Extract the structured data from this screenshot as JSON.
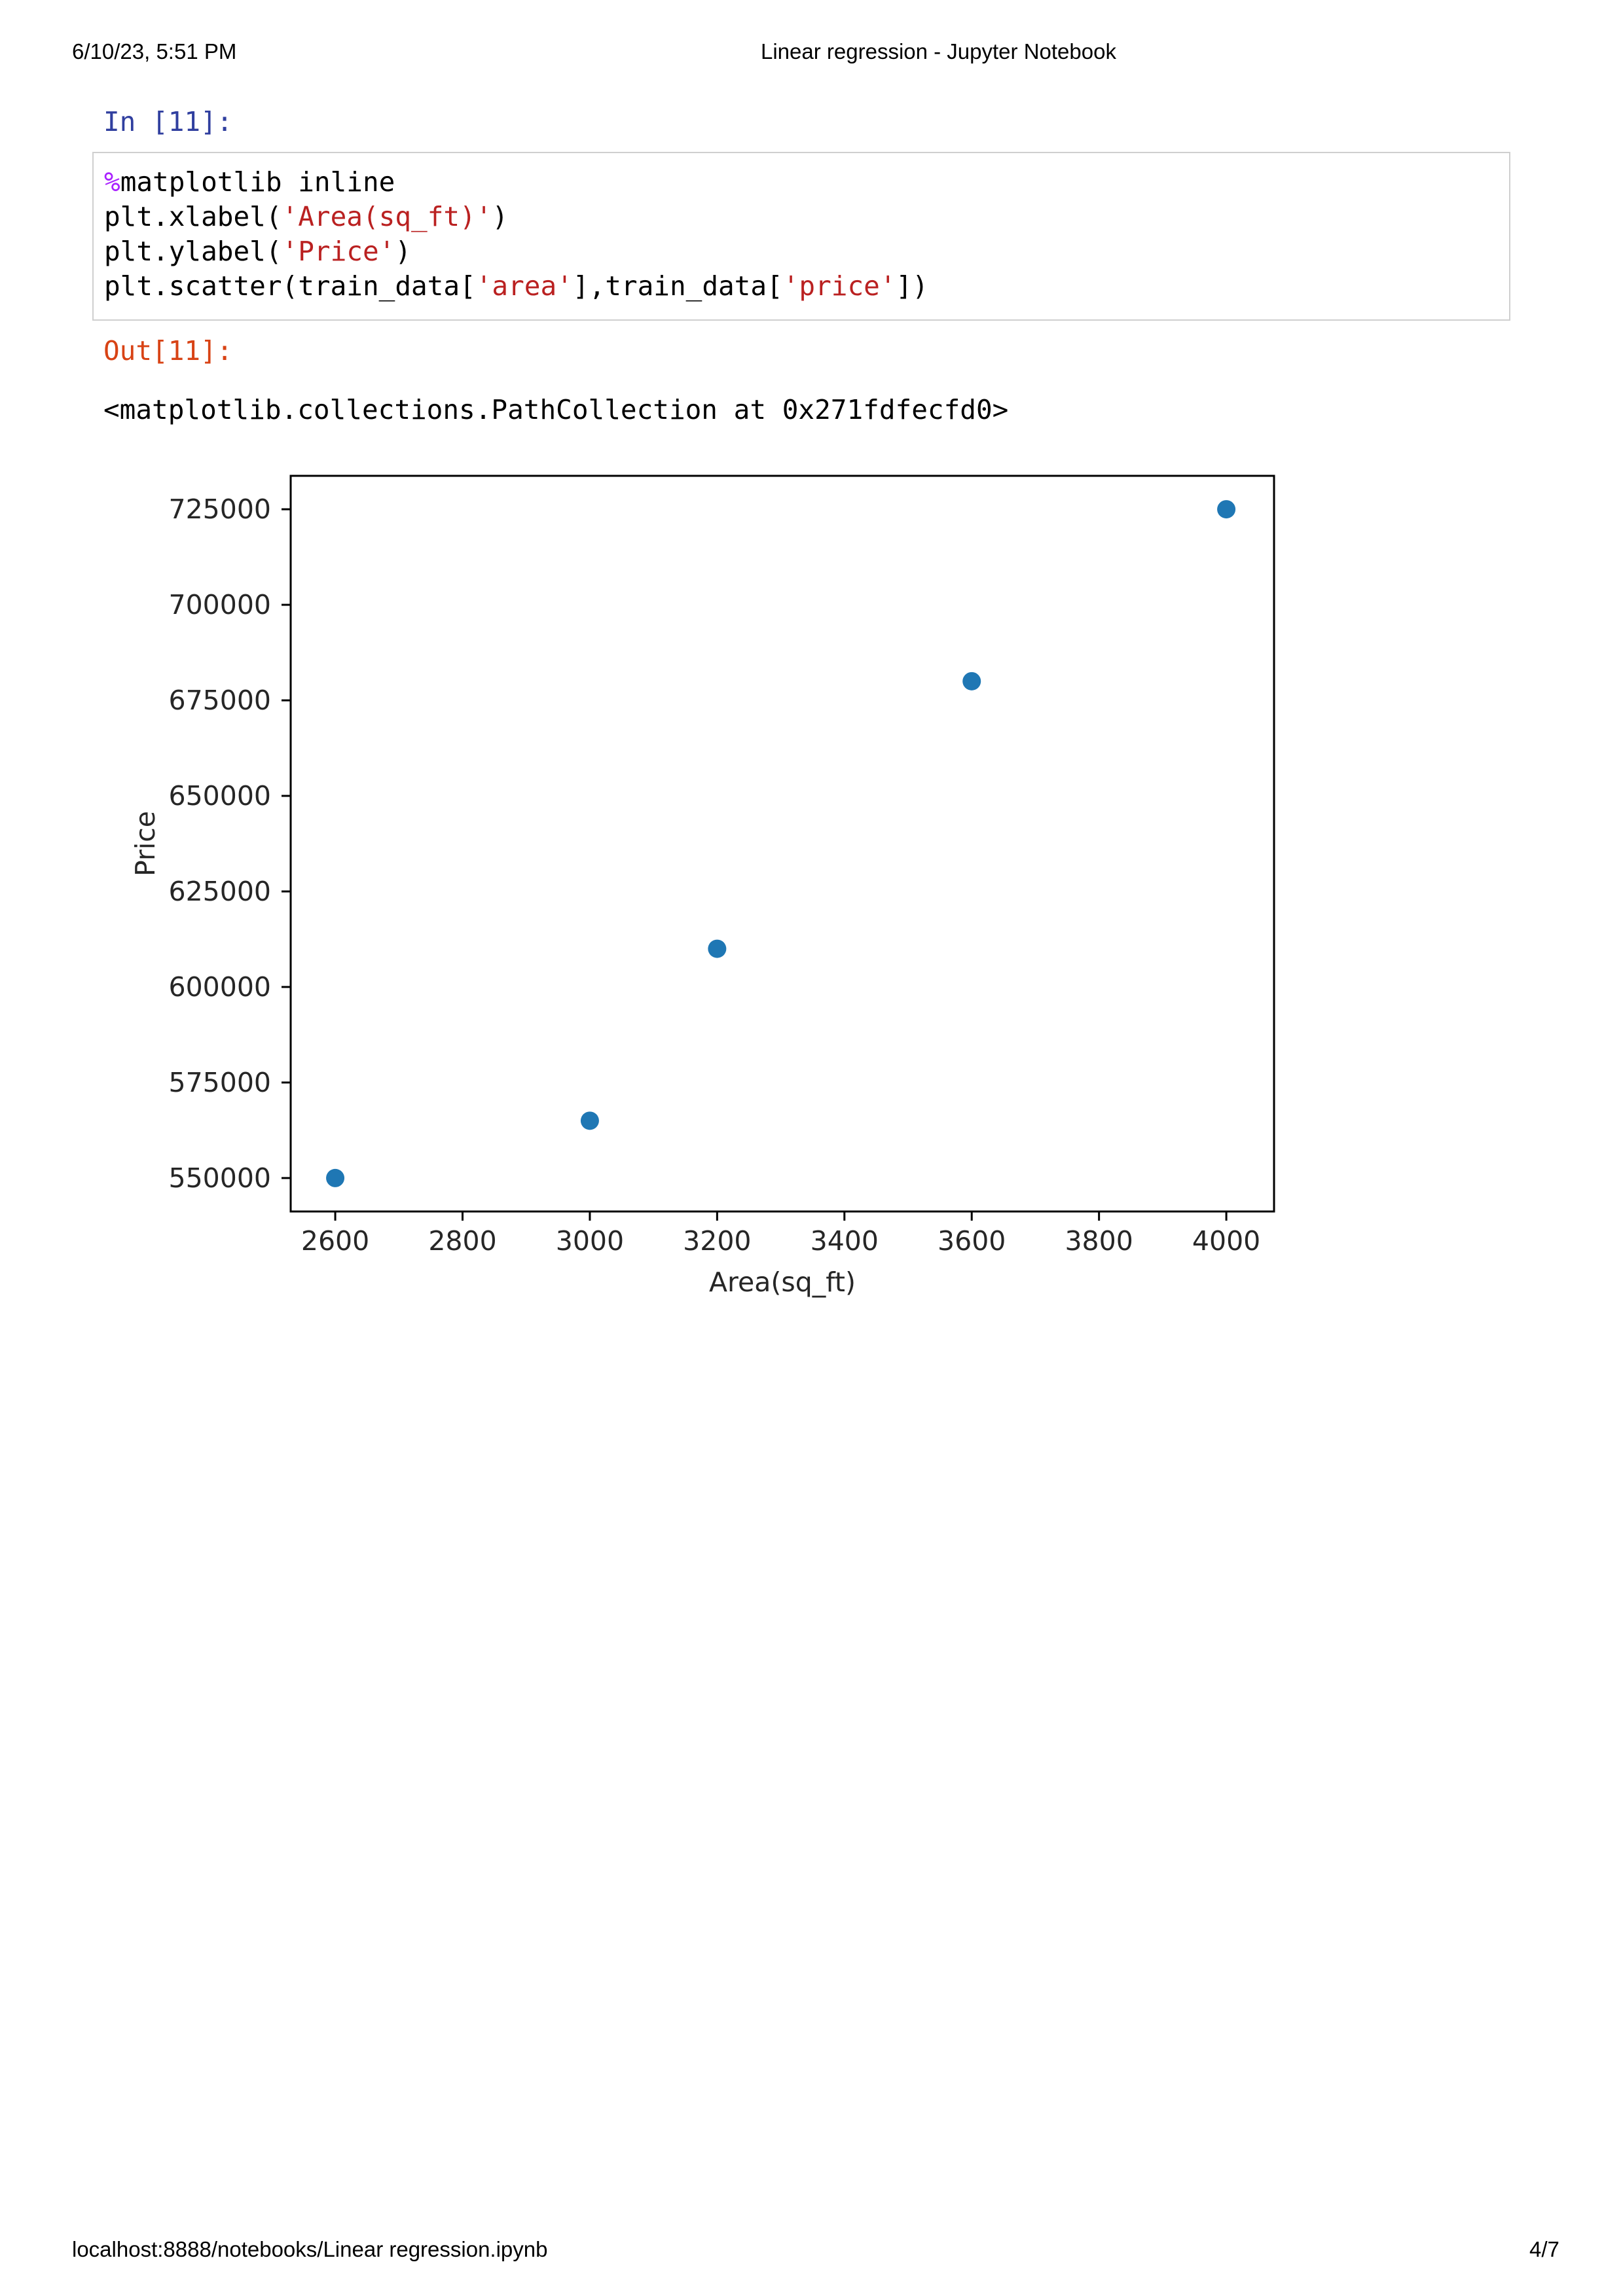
{
  "page_header": {
    "datetime": "6/10/23, 5:51 PM",
    "title": "Linear regression - Jupyter Notebook"
  },
  "page_footer": {
    "url": "localhost:8888/notebooks/Linear regression.ipynb",
    "page_number": "4/7"
  },
  "cell": {
    "in_prompt": "In [11]:",
    "out_prompt": "Out[11]:",
    "code": {
      "line1_magic": "%",
      "line1_rest": "matplotlib inline",
      "line2_pre": "plt.xlabel(",
      "line2_str": "'Area(sq_ft)'",
      "line2_post": ")",
      "line3_pre": "plt.ylabel(",
      "line3_str": "'Price'",
      "line3_post": ")",
      "line4_pre": "plt.scatter(train_data[",
      "line4_str1": "'area'",
      "line4_mid": "],train_data[",
      "line4_str2": "'price'",
      "line4_post": "])"
    },
    "output_text": "<matplotlib.collections.PathCollection at 0x271fdfecfd0>"
  },
  "chart_data": {
    "type": "scatter",
    "xlabel": "Area(sq_ft)",
    "ylabel": "Price",
    "x": [
      2600,
      3000,
      3200,
      3600,
      4000
    ],
    "y": [
      550000,
      565000,
      610000,
      680000,
      725000
    ],
    "xlim": [
      2530,
      4075
    ],
    "ylim": [
      541250,
      733750
    ],
    "xticks": [
      2600,
      2800,
      3000,
      3200,
      3400,
      3600,
      3800,
      4000
    ],
    "yticks": [
      550000,
      575000,
      600000,
      625000,
      650000,
      675000,
      700000,
      725000
    ],
    "marker_color": "#1f77b4",
    "grid": false
  }
}
